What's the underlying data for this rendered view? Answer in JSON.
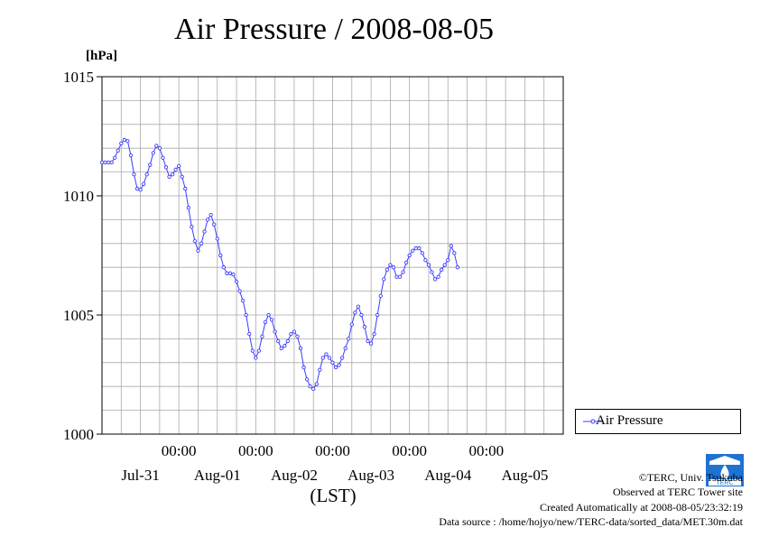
{
  "title": "Air Pressure / 2008-08-05",
  "unit_label": "[hPa]",
  "legend_label": "Air Pressure",
  "colors": {
    "series": "#3b3bff",
    "grid": "#a9a9a9",
    "logo": "#1e73d2"
  },
  "credits": {
    "copyright": "©TERC, Univ. Tsukuba",
    "observed": "Observed at TERC Tower site",
    "created": "Created Automatically at 2008-08-05/23:32:19",
    "source": "Data source : /home/hojyo/new/TERC-data/sorted_data/MET.30m.dat"
  },
  "logo_text": "TERC",
  "chart_data": {
    "type": "line",
    "title": "Air Pressure / 2008-08-05",
    "ylabel": "[hPa]",
    "xlabel": "(LST)",
    "ylim": [
      1000,
      1015
    ],
    "y_ticks": [
      1000,
      1005,
      1010,
      1015
    ],
    "xlim_hours": [
      0,
      144
    ],
    "x_ticks": [
      {
        "hour": 24,
        "time": "00:00",
        "date": "Aug-01"
      },
      {
        "hour": 48,
        "time": "00:00",
        "date": "Aug-02"
      },
      {
        "hour": 72,
        "time": "00:00",
        "date": "Aug-03"
      },
      {
        "hour": 96,
        "time": "00:00",
        "date": "Aug-04"
      },
      {
        "hour": 120,
        "time": "00:00",
        "date": "Aug-05"
      }
    ],
    "date_labels": [
      {
        "hour": 12,
        "label": "Jul-31"
      },
      {
        "hour": 36,
        "label": "Aug-01"
      },
      {
        "hour": 60,
        "label": "Aug-02"
      },
      {
        "hour": 84,
        "label": "Aug-03"
      },
      {
        "hour": 108,
        "label": "Aug-04"
      },
      {
        "hour": 132,
        "label": "Aug-05"
      }
    ],
    "grid": true,
    "legend": "right",
    "series": [
      {
        "name": "Air Pressure",
        "points": [
          [
            0,
            1011.4
          ],
          [
            1,
            1011.4
          ],
          [
            2,
            1011.4
          ],
          [
            3,
            1011.4
          ],
          [
            4,
            1011.6
          ],
          [
            5,
            1011.9
          ],
          [
            6,
            1012.2
          ],
          [
            7,
            1012.35
          ],
          [
            8,
            1012.3
          ],
          [
            9,
            1011.7
          ],
          [
            10,
            1010.9
          ],
          [
            11,
            1010.3
          ],
          [
            12,
            1010.25
          ],
          [
            13,
            1010.5
          ],
          [
            14,
            1010.9
          ],
          [
            15,
            1011.3
          ],
          [
            16,
            1011.8
          ],
          [
            17,
            1012.1
          ],
          [
            18,
            1012.0
          ],
          [
            19,
            1011.6
          ],
          [
            20,
            1011.2
          ],
          [
            21,
            1010.8
          ],
          [
            22,
            1010.9
          ],
          [
            23,
            1011.1
          ],
          [
            24,
            1011.25
          ],
          [
            25,
            1010.8
          ],
          [
            26,
            1010.3
          ],
          [
            27,
            1009.5
          ],
          [
            28,
            1008.7
          ],
          [
            29,
            1008.1
          ],
          [
            30,
            1007.7
          ],
          [
            31,
            1008.0
          ],
          [
            32,
            1008.5
          ],
          [
            33,
            1009.0
          ],
          [
            34,
            1009.2
          ],
          [
            35,
            1008.8
          ],
          [
            36,
            1008.2
          ],
          [
            37,
            1007.5
          ],
          [
            38,
            1007.0
          ],
          [
            39,
            1006.75
          ],
          [
            40,
            1006.75
          ],
          [
            41,
            1006.7
          ],
          [
            42,
            1006.4
          ],
          [
            43,
            1006.0
          ],
          [
            44,
            1005.6
          ],
          [
            45,
            1005.0
          ],
          [
            46,
            1004.2
          ],
          [
            47,
            1003.5
          ],
          [
            48,
            1003.2
          ],
          [
            49,
            1003.5
          ],
          [
            50,
            1004.1
          ],
          [
            51,
            1004.7
          ],
          [
            52,
            1005.0
          ],
          [
            53,
            1004.8
          ],
          [
            54,
            1004.3
          ],
          [
            55,
            1003.9
          ],
          [
            56,
            1003.6
          ],
          [
            57,
            1003.7
          ],
          [
            58,
            1003.9
          ],
          [
            59,
            1004.2
          ],
          [
            60,
            1004.3
          ],
          [
            61,
            1004.1
          ],
          [
            62,
            1003.6
          ],
          [
            63,
            1002.8
          ],
          [
            64,
            1002.3
          ],
          [
            65,
            1002.0
          ],
          [
            66,
            1001.9
          ],
          [
            67,
            1002.1
          ],
          [
            68,
            1002.7
          ],
          [
            69,
            1003.2
          ],
          [
            70,
            1003.35
          ],
          [
            71,
            1003.2
          ],
          [
            72,
            1003.0
          ],
          [
            73,
            1002.8
          ],
          [
            74,
            1002.9
          ],
          [
            75,
            1003.2
          ],
          [
            76,
            1003.6
          ],
          [
            77,
            1004.0
          ],
          [
            78,
            1004.6
          ],
          [
            79,
            1005.1
          ],
          [
            80,
            1005.35
          ],
          [
            81,
            1005.0
          ],
          [
            82,
            1004.5
          ],
          [
            83,
            1003.9
          ],
          [
            84,
            1003.8
          ],
          [
            85,
            1004.2
          ],
          [
            86,
            1005.0
          ],
          [
            87,
            1005.8
          ],
          [
            88,
            1006.5
          ],
          [
            89,
            1006.9
          ],
          [
            90,
            1007.1
          ],
          [
            91,
            1007.0
          ],
          [
            92,
            1006.6
          ],
          [
            93,
            1006.6
          ],
          [
            94,
            1006.8
          ],
          [
            95,
            1007.2
          ],
          [
            96,
            1007.5
          ],
          [
            97,
            1007.7
          ],
          [
            98,
            1007.8
          ],
          [
            99,
            1007.8
          ],
          [
            100,
            1007.6
          ],
          [
            101,
            1007.3
          ],
          [
            102,
            1007.1
          ],
          [
            103,
            1006.8
          ],
          [
            104,
            1006.5
          ],
          [
            105,
            1006.6
          ],
          [
            106,
            1006.9
          ],
          [
            107,
            1007.1
          ],
          [
            108,
            1007.3
          ],
          [
            109,
            1007.9
          ],
          [
            110,
            1007.6
          ],
          [
            111,
            1007.0
          ]
        ]
      }
    ]
  }
}
